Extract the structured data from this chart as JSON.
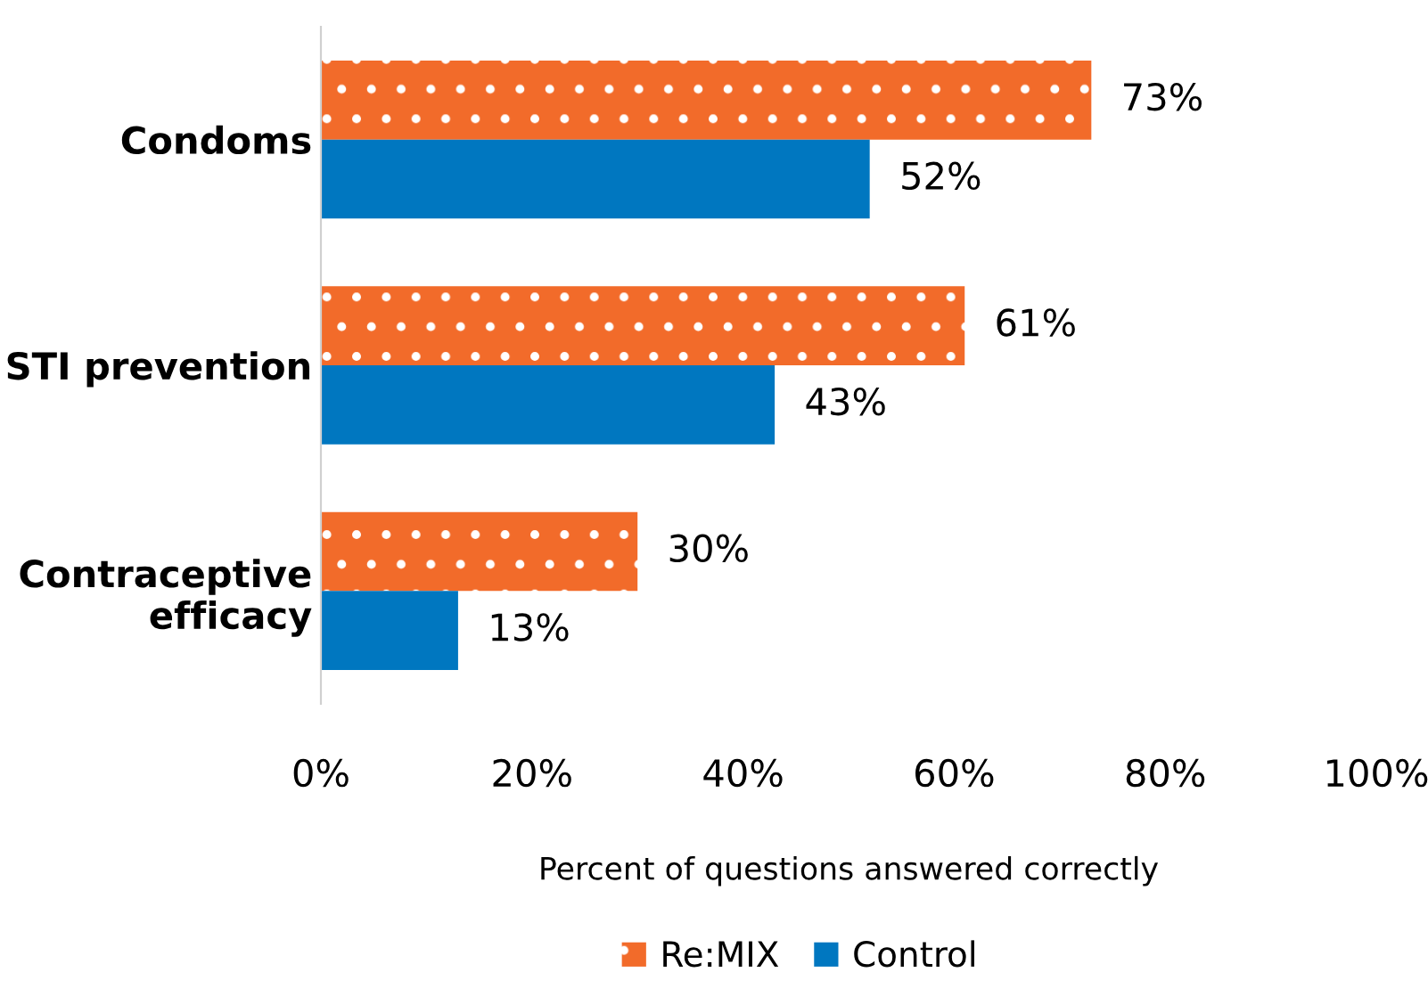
{
  "chart_data": {
    "type": "bar",
    "orientation": "horizontal",
    "categories": [
      "Condoms",
      "STI prevention",
      "Contraceptive\nefficacy"
    ],
    "series": [
      {
        "name": "Re:MIX",
        "color": "#f26b2a",
        "values": [
          73,
          61,
          30
        ],
        "value_labels": [
          "73%",
          "61%",
          "30%"
        ]
      },
      {
        "name": "Control",
        "color": "#0077c0",
        "values": [
          52,
          43,
          13
        ],
        "value_labels": [
          "52%",
          "43%",
          "13%"
        ]
      }
    ],
    "xlim": [
      0,
      100
    ],
    "xticks": [
      {
        "value": 0,
        "label": "0%"
      },
      {
        "value": 20,
        "label": "20%"
      },
      {
        "value": 40,
        "label": "40%"
      },
      {
        "value": 60,
        "label": "60%"
      },
      {
        "value": 80,
        "label": "80%"
      },
      {
        "value": 100,
        "label": "100%"
      }
    ],
    "xlabel": "Percent of questions answered correctly",
    "grid": false,
    "legend": "bottom"
  }
}
